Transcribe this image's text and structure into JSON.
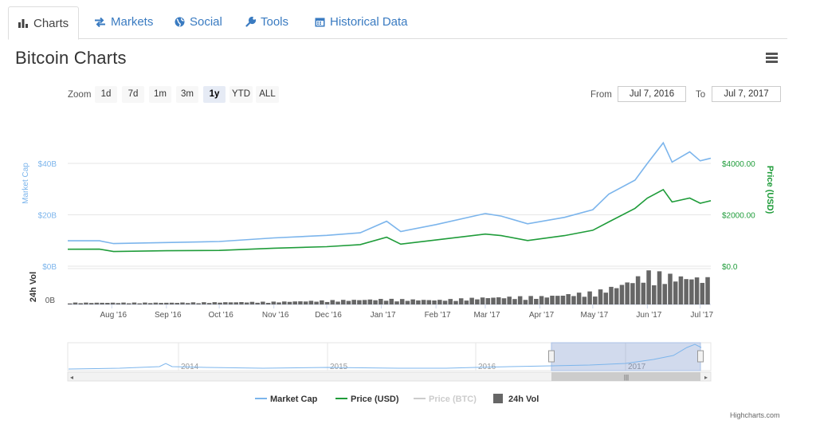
{
  "tabs": [
    {
      "label": "Charts",
      "icon": "bar-chart-icon",
      "active": true
    },
    {
      "label": "Markets",
      "icon": "exchange-icon",
      "active": false
    },
    {
      "label": "Social",
      "icon": "globe-icon",
      "active": false
    },
    {
      "label": "Tools",
      "icon": "wrench-icon",
      "active": false
    },
    {
      "label": "Historical Data",
      "icon": "calendar-icon",
      "active": false
    }
  ],
  "page": {
    "title": "Bitcoin Charts",
    "menu_icon": "hamburger-menu-icon"
  },
  "zoom": {
    "label": "Zoom",
    "buttons": [
      "1d",
      "7d",
      "1m",
      "3m",
      "1y",
      "YTD",
      "ALL"
    ],
    "selected": "1y"
  },
  "range": {
    "from_label": "From",
    "from_value": "Jul 7, 2016",
    "to_label": "To",
    "to_value": "Jul 7, 2017"
  },
  "colors": {
    "market_cap": "#7cb5ec",
    "price_usd": "#1f9c3a",
    "price_btc": "#cccccc",
    "volume": "#666666",
    "axis_left": "#7cb5ec",
    "axis_right": "#1f9c3a"
  },
  "chart_data": {
    "type": "line",
    "title": "",
    "x_ticks": [
      "Aug '16",
      "Sep '16",
      "Oct '16",
      "Nov '16",
      "Dec '16",
      "Jan '17",
      "Feb '17",
      "Mar '17",
      "Apr '17",
      "May '17",
      "Jun '17",
      "Jul '17"
    ],
    "xlim": [
      "2016-07-07",
      "2017-07-07"
    ],
    "left_axis": {
      "label": "Market Cap",
      "ticks": [
        "$0B",
        "$20B",
        "$40B"
      ],
      "ylim": [
        0,
        40
      ]
    },
    "right_axis": {
      "label": "Price (USD)",
      "ticks": [
        "$0.0",
        "$2000.00",
        "$4000.00"
      ],
      "ylim": [
        0,
        4000
      ]
    },
    "volume_axis": {
      "label": "24h Vol",
      "ticks": [
        "0B"
      ]
    },
    "series": [
      {
        "name": "Market Cap",
        "axis": "left",
        "x": [
          "2016-07-07",
          "2016-07-25",
          "2016-08-02",
          "2016-09-01",
          "2016-10-01",
          "2016-11-01",
          "2016-12-01",
          "2016-12-20",
          "2017-01-04",
          "2017-01-12",
          "2017-02-01",
          "2017-03-01",
          "2017-03-10",
          "2017-03-25",
          "2017-04-15",
          "2017-05-01",
          "2017-05-10",
          "2017-05-25",
          "2017-06-01",
          "2017-06-10",
          "2017-06-15",
          "2017-06-25",
          "2017-07-01",
          "2017-07-07"
        ],
        "values": [
          9.9,
          9.9,
          8.8,
          9.2,
          9.6,
          11.0,
          12.0,
          13.0,
          17.5,
          13.5,
          16.2,
          20.5,
          19.5,
          16.5,
          19.0,
          22.0,
          28.0,
          33.5,
          40.0,
          48.0,
          40.5,
          44.5,
          41.0,
          42.0
        ]
      },
      {
        "name": "Price (USD)",
        "axis": "right",
        "x": [
          "2016-07-07",
          "2016-07-25",
          "2016-08-02",
          "2016-09-01",
          "2016-10-01",
          "2016-11-01",
          "2016-12-01",
          "2016-12-20",
          "2017-01-04",
          "2017-01-12",
          "2017-02-01",
          "2017-03-01",
          "2017-03-10",
          "2017-03-25",
          "2017-04-15",
          "2017-05-01",
          "2017-05-10",
          "2017-05-25",
          "2017-06-01",
          "2017-06-10",
          "2017-06-15",
          "2017-06-25",
          "2017-07-01",
          "2017-07-07"
        ],
        "values": [
          660,
          665,
          570,
          600,
          615,
          700,
          760,
          840,
          1130,
          860,
          1020,
          1250,
          1190,
          1000,
          1190,
          1400,
          1720,
          2250,
          2650,
          2980,
          2500,
          2650,
          2450,
          2550
        ]
      },
      {
        "name": "Price (BTC)",
        "axis": "none",
        "x": [],
        "values": []
      },
      {
        "name": "24h Vol",
        "axis": "volume",
        "x": [
          "2016-07-07",
          "2016-09-01",
          "2016-11-01",
          "2017-01-01",
          "2017-02-01",
          "2017-03-01",
          "2017-04-01",
          "2017-05-01",
          "2017-05-15",
          "2017-06-01",
          "2017-06-15",
          "2017-07-01",
          "2017-07-07"
        ],
        "values": [
          0.1,
          0.1,
          0.15,
          0.3,
          0.25,
          0.4,
          0.45,
          0.7,
          1.1,
          1.8,
          1.6,
          1.5,
          1.4
        ]
      }
    ],
    "navigator": {
      "x_ticks": [
        "2014",
        "2015",
        "2016",
        "2017"
      ]
    },
    "legend": {
      "items": [
        "Market Cap",
        "Price (USD)",
        "Price (BTC)",
        "24h Vol"
      ],
      "position": "bottom-center"
    },
    "grid": true
  },
  "credits": "Highcharts.com"
}
